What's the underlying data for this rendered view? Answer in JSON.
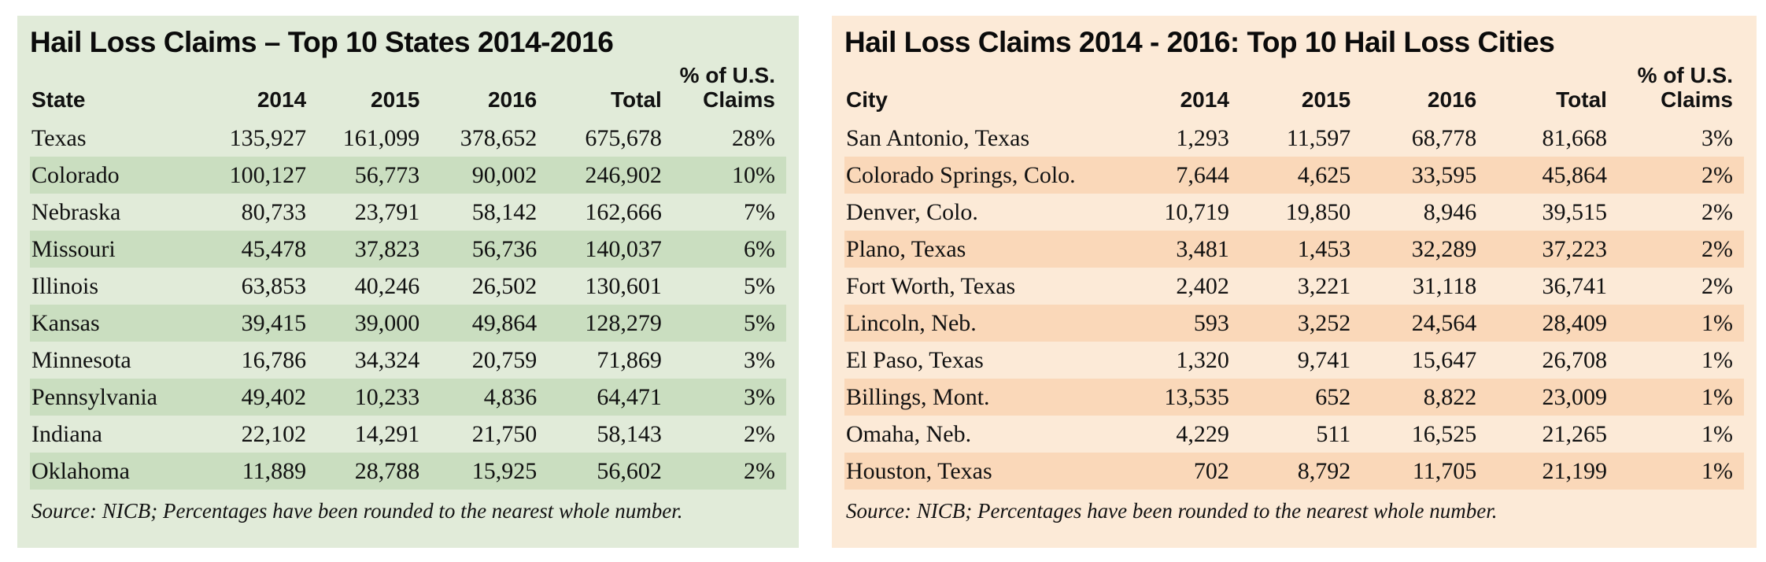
{
  "page": {
    "background": "#ffffff",
    "text_color": "#111111"
  },
  "chart_data": [
    {
      "type": "table",
      "title": "Hail Loss Claims – Top 10 States 2014-2016",
      "columns": [
        "State",
        "2014",
        "2015",
        "2016",
        "Total",
        "% of U.S.\nClaims"
      ],
      "rows": [
        [
          "Texas",
          "135,927",
          "161,099",
          "378,652",
          "675,678",
          "28%"
        ],
        [
          "Colorado",
          "100,127",
          "56,773",
          "90,002",
          "246,902",
          "10%"
        ],
        [
          "Nebraska",
          "80,733",
          "23,791",
          "58,142",
          "162,666",
          "7%"
        ],
        [
          "Missouri",
          "45,478",
          "37,823",
          "56,736",
          "140,037",
          "6%"
        ],
        [
          "Illinois",
          "63,853",
          "40,246",
          "26,502",
          "130,601",
          "5%"
        ],
        [
          "Kansas",
          "39,415",
          "39,000",
          "49,864",
          "128,279",
          "5%"
        ],
        [
          "Minnesota",
          "16,786",
          "34,324",
          "20,759",
          "71,869",
          "3%"
        ],
        [
          "Pennsylvania",
          "49,402",
          "10,233",
          "4,836",
          "64,471",
          "3%"
        ],
        [
          "Indiana",
          "22,102",
          "14,291",
          "21,750",
          "58,143",
          "2%"
        ],
        [
          "Oklahoma",
          "11,889",
          "28,788",
          "15,925",
          "56,602",
          "2%"
        ]
      ],
      "source": "Source: NICB; Percentages have been rounded to the nearest whole number.",
      "theme": {
        "panel_bg": "#e1ebd9",
        "row_alt_bg": "#cadec0"
      }
    },
    {
      "type": "table",
      "title": "Hail Loss Claims 2014 - 2016: Top 10 Hail Loss Cities",
      "columns": [
        "City",
        "2014",
        "2015",
        "2016",
        "Total",
        "% of U.S.\nClaims"
      ],
      "rows": [
        [
          "San Antonio, Texas",
          "1,293",
          "11,597",
          "68,778",
          "81,668",
          "3%"
        ],
        [
          "Colorado Springs, Colo.",
          "7,644",
          "4,625",
          "33,595",
          "45,864",
          "2%"
        ],
        [
          "Denver, Colo.",
          "10,719",
          "19,850",
          "8,946",
          "39,515",
          "2%"
        ],
        [
          "Plano, Texas",
          "3,481",
          "1,453",
          "32,289",
          "37,223",
          "2%"
        ],
        [
          "Fort Worth, Texas",
          "2,402",
          "3,221",
          "31,118",
          "36,741",
          "2%"
        ],
        [
          "Lincoln, Neb.",
          "593",
          "3,252",
          "24,564",
          "28,409",
          "1%"
        ],
        [
          "El Paso, Texas",
          "1,320",
          "9,741",
          "15,647",
          "26,708",
          "1%"
        ],
        [
          "Billings, Mont.",
          "13,535",
          "652",
          "8,822",
          "23,009",
          "1%"
        ],
        [
          "Omaha, Neb.",
          "4,229",
          "511",
          "16,525",
          "21,265",
          "1%"
        ],
        [
          "Houston, Texas",
          "702",
          "8,792",
          "11,705",
          "21,199",
          "1%"
        ]
      ],
      "source": "Source: NICB; Percentages have been rounded to the nearest whole number.",
      "theme": {
        "panel_bg": "#fcead7",
        "row_alt_bg": "#fad8b9"
      }
    }
  ]
}
